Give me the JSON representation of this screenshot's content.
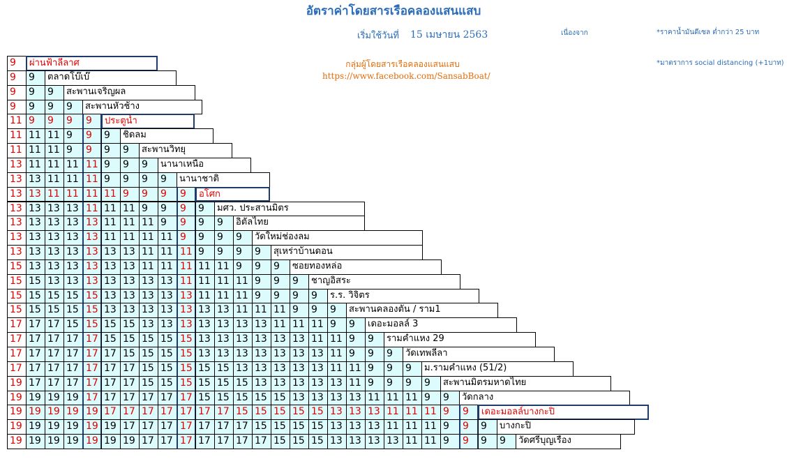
{
  "header": {
    "title": "อัตราค่าโดยสารเรือคลองแสนแสบ",
    "start_label": "เริ่มใช้วันที่",
    "start_date": "15 เมษายน 2563",
    "because": "เนื่องจาก",
    "note1": "*ราคาน้ำมันดีเซล ต่ำกว่า 25 บาท",
    "note2": "*มาตราการ social distancing (+1บาท)",
    "group": "กลุ่มผู้โดยสารเรือคลองแสนแสบ",
    "facebook": "https://www.facebook.com/SansabBoat/"
  },
  "colors": {
    "red": "#e00000",
    "blue": "#2b6cb8",
    "orange": "#e36c09",
    "cell_fill": "#dcfbfc"
  },
  "special_stops": [
    0,
    4,
    9,
    24
  ],
  "stops": [
    {
      "name": "ผ่านฟ้าลีลาศ",
      "fares": [
        9
      ]
    },
    {
      "name": "ตลาดโบ๊เบ๊",
      "fares": [
        9,
        9
      ]
    },
    {
      "name": "สะพานเจริญผล",
      "fares": [
        9,
        9,
        9
      ]
    },
    {
      "name": "สะพานหัวช้าง",
      "fares": [
        9,
        9,
        9,
        9
      ]
    },
    {
      "name": "ประตูน้ำ",
      "fares": [
        11,
        9,
        9,
        9,
        9
      ]
    },
    {
      "name": "ชิดลม",
      "fares": [
        11,
        11,
        11,
        9,
        9,
        9
      ]
    },
    {
      "name": "สะพานวิทยุ",
      "fares": [
        11,
        11,
        11,
        9,
        9,
        9,
        9
      ]
    },
    {
      "name": "นานาเหนือ",
      "fares": [
        13,
        11,
        11,
        11,
        11,
        9,
        9,
        9
      ]
    },
    {
      "name": "นานาชาติ",
      "fares": [
        13,
        13,
        11,
        11,
        11,
        9,
        9,
        9,
        9
      ]
    },
    {
      "name": "อโศก",
      "fares": [
        13,
        13,
        11,
        11,
        11,
        11,
        9,
        9,
        9,
        9
      ]
    },
    {
      "name": "มศว. ประสานมิตร",
      "fares": [
        13,
        13,
        13,
        13,
        11,
        11,
        11,
        9,
        9,
        9,
        9
      ]
    },
    {
      "name": "อิตัลไทย",
      "fares": [
        13,
        13,
        13,
        13,
        13,
        11,
        11,
        11,
        9,
        9,
        9,
        9
      ]
    },
    {
      "name": "วัดใหม่ช่องลม",
      "fares": [
        13,
        13,
        13,
        13,
        13,
        11,
        11,
        11,
        11,
        9,
        9,
        9,
        9
      ]
    },
    {
      "name": "สุเหร่าบ้านดอน",
      "fares": [
        13,
        13,
        13,
        13,
        13,
        13,
        13,
        11,
        11,
        11,
        9,
        9,
        9,
        9
      ]
    },
    {
      "name": "ซอยทองหล่อ",
      "fares": [
        15,
        13,
        13,
        13,
        13,
        13,
        13,
        11,
        11,
        11,
        11,
        11,
        9,
        9,
        9
      ]
    },
    {
      "name": "ชาญอิสระ",
      "fares": [
        15,
        15,
        13,
        13,
        13,
        13,
        13,
        13,
        13,
        11,
        11,
        11,
        11,
        9,
        9,
        9
      ]
    },
    {
      "name": "ร.ร. วิจิตร",
      "fares": [
        15,
        15,
        15,
        15,
        15,
        13,
        13,
        13,
        13,
        13,
        11,
        11,
        11,
        9,
        9,
        9,
        9
      ]
    },
    {
      "name": "สะพานคลองตัน / ราม1",
      "fares": [
        15,
        15,
        15,
        15,
        15,
        13,
        13,
        13,
        13,
        13,
        13,
        13,
        11,
        11,
        11,
        9,
        9,
        9
      ]
    },
    {
      "name": "เดอะมอลล์ 3",
      "fares": [
        17,
        17,
        17,
        15,
        15,
        15,
        15,
        13,
        13,
        13,
        13,
        13,
        13,
        13,
        11,
        11,
        11,
        9,
        9
      ]
    },
    {
      "name": "รามคำแหง 29",
      "fares": [
        17,
        17,
        17,
        17,
        17,
        15,
        15,
        15,
        15,
        15,
        13,
        13,
        13,
        13,
        13,
        13,
        11,
        11,
        9,
        9
      ]
    },
    {
      "name": "วัดเทพลีลา",
      "fares": [
        17,
        17,
        17,
        17,
        17,
        17,
        15,
        15,
        15,
        15,
        13,
        13,
        13,
        13,
        13,
        13,
        13,
        11,
        9,
        9,
        9
      ]
    },
    {
      "name": "ม.รามคำแหง (51/2)",
      "fares": [
        17,
        17,
        17,
        17,
        17,
        17,
        17,
        15,
        15,
        15,
        15,
        15,
        13,
        13,
        13,
        13,
        13,
        11,
        11,
        9,
        9,
        9
      ]
    },
    {
      "name": "สะพานมิตรมหาดไทย",
      "fares": [
        19,
        17,
        17,
        17,
        17,
        17,
        17,
        15,
        15,
        15,
        15,
        15,
        15,
        13,
        13,
        13,
        13,
        13,
        11,
        9,
        9,
        9,
        9
      ]
    },
    {
      "name": "วัดกลาง",
      "fares": [
        19,
        19,
        19,
        19,
        17,
        17,
        17,
        17,
        17,
        17,
        15,
        15,
        15,
        15,
        15,
        13,
        13,
        13,
        13,
        11,
        11,
        11,
        9,
        9
      ]
    },
    {
      "name": "เดอะมอลล์บางกะปิ",
      "fares": [
        19,
        19,
        19,
        19,
        19,
        17,
        17,
        17,
        17,
        17,
        17,
        17,
        15,
        15,
        15,
        15,
        15,
        13,
        13,
        13,
        11,
        11,
        11,
        9,
        9
      ]
    },
    {
      "name": "บางกะปิ",
      "fares": [
        19,
        19,
        19,
        19,
        19,
        19,
        17,
        17,
        17,
        17,
        17,
        17,
        17,
        15,
        15,
        15,
        15,
        13,
        13,
        13,
        11,
        11,
        11,
        9,
        9,
        9
      ]
    },
    {
      "name": "วัดศรีบุญเรือง",
      "fares": [
        19,
        19,
        19,
        19,
        19,
        19,
        19,
        17,
        17,
        17,
        17,
        17,
        17,
        17,
        15,
        15,
        15,
        13,
        13,
        13,
        13,
        11,
        11,
        9,
        9,
        9,
        9
      ]
    }
  ]
}
